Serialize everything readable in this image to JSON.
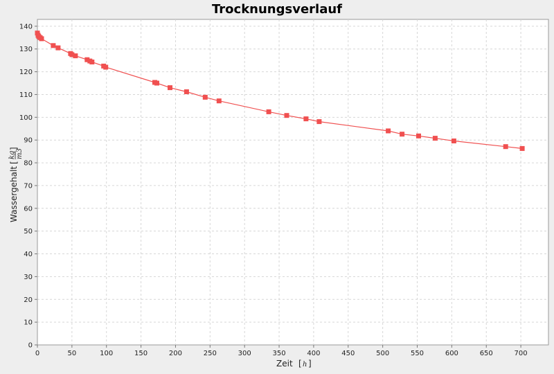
{
  "chart_data": {
    "type": "line",
    "title": "Trocknungsverlauf",
    "xlabel": "Zeit",
    "x_unit": "h",
    "ylabel": "Wassergehalt",
    "y_unit_num": "kg",
    "y_unit_den": "m3",
    "xlim": [
      0,
      740
    ],
    "ylim": [
      0,
      143
    ],
    "x_ticks": [
      0,
      50,
      100,
      150,
      200,
      250,
      300,
      350,
      400,
      450,
      500,
      550,
      600,
      650,
      700
    ],
    "y_ticks": [
      0,
      10,
      20,
      30,
      40,
      50,
      60,
      70,
      80,
      90,
      100,
      110,
      120,
      130,
      140
    ],
    "grid": true,
    "legend": "none",
    "series": [
      {
        "color": "#f05050",
        "marker": "square",
        "x": [
          0,
          1,
          2,
          4,
          6,
          23,
          30,
          48,
          50,
          55,
          72,
          76,
          79,
          96,
          99,
          170,
          173,
          192,
          216,
          243,
          263,
          335,
          361,
          389,
          408,
          508,
          528,
          552,
          576,
          603,
          678,
          702
        ],
        "y": [
          137,
          136,
          135.5,
          135,
          134.5,
          131.5,
          130.5,
          128,
          127.5,
          127,
          125.3,
          124.7,
          124.3,
          122.5,
          122,
          115.3,
          115,
          113,
          111.2,
          108.8,
          107.2,
          102.4,
          100.8,
          99.3,
          98.1,
          94,
          92.6,
          91.8,
          90.8,
          89.6,
          87.1,
          86.3
        ]
      }
    ]
  }
}
